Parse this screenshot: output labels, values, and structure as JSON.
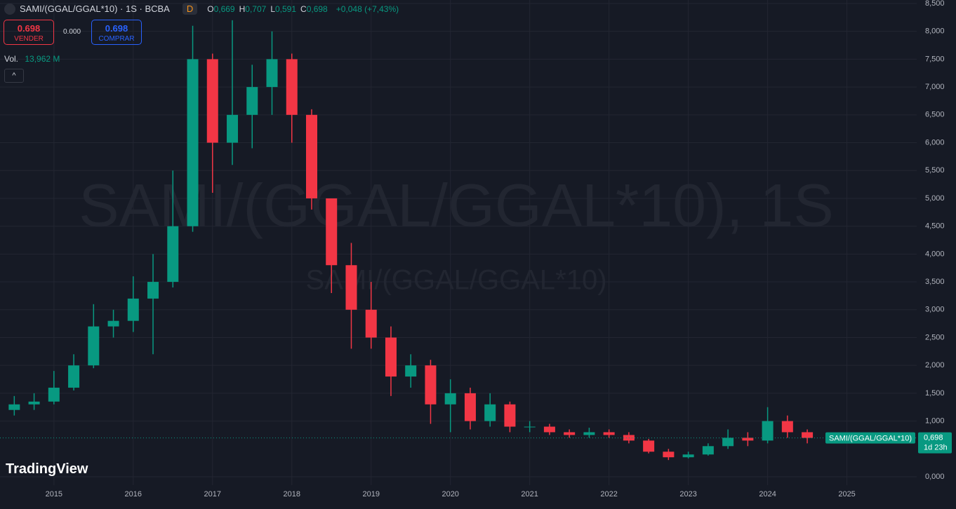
{
  "header": {
    "symbol": "SAMI/(GGAL/GGAL*10) · 1S · BCBA",
    "badge": "D",
    "ohlc": [
      {
        "key": "O",
        "val": "0,669"
      },
      {
        "key": "H",
        "val": "0,707"
      },
      {
        "key": "L",
        "val": "0,591"
      },
      {
        "key": "C",
        "val": "0,698"
      }
    ],
    "change": "+0,048 (+7,43%)",
    "sell": {
      "price": "0.698",
      "label": "VENDER"
    },
    "spread": "0.000",
    "buy": {
      "price": "0.698",
      "label": "COMPRAR"
    },
    "volume": {
      "label": "Vol.",
      "value": "13,962 M"
    }
  },
  "watermark": {
    "main": "SAMI/(GGAL/GGAL*10), 1S",
    "sub": "SAMI/(GGAL/GGAL*10)"
  },
  "price_tag": {
    "name": "SAMI/(GGAL/GGAL*10)",
    "price": "0,698",
    "countdown": "1d 23h"
  },
  "brand": "TradingView",
  "chart_data": {
    "type": "candlestick",
    "up_color": "#089981",
    "down_color": "#f23645",
    "grid": true,
    "x": [
      2014.5,
      2014.75,
      2015,
      2015.25,
      2015.5,
      2015.75,
      2016,
      2016.25,
      2016.5,
      2016.75,
      2017,
      2017.25,
      2017.5,
      2017.75,
      2018,
      2018.25,
      2018.5,
      2018.75,
      2019,
      2019.25,
      2019.5,
      2019.75,
      2020,
      2020.25,
      2020.5,
      2020.75,
      2021,
      2021.25,
      2021.5,
      2021.75,
      2022,
      2022.25,
      2022.5,
      2022.75,
      2023,
      2023.25,
      2023.5,
      2023.75,
      2024,
      2024.25,
      2024.5
    ],
    "open": [
      1.2,
      1.3,
      1.35,
      1.6,
      2.0,
      2.7,
      2.8,
      3.2,
      3.5,
      4.5,
      7.5,
      6.0,
      6.5,
      7.0,
      7.5,
      6.5,
      5.0,
      3.8,
      3.0,
      2.5,
      1.8,
      2.0,
      1.3,
      1.5,
      1.0,
      1.3,
      0.9,
      0.9,
      0.8,
      0.75,
      0.8,
      0.75,
      0.65,
      0.45,
      0.35,
      0.4,
      0.55,
      0.7,
      0.65,
      1.0,
      0.8
    ],
    "high": [
      1.45,
      1.5,
      1.9,
      2.2,
      3.1,
      3.0,
      3.6,
      4.0,
      5.5,
      8.1,
      7.6,
      8.2,
      7.4,
      8.0,
      7.6,
      6.6,
      5.0,
      4.2,
      3.5,
      2.7,
      2.2,
      2.1,
      1.75,
      1.6,
      1.5,
      1.35,
      1.0,
      0.95,
      0.85,
      0.88,
      0.85,
      0.8,
      0.68,
      0.5,
      0.45,
      0.6,
      0.85,
      0.8,
      1.25,
      1.1,
      0.85
    ],
    "low": [
      1.1,
      1.2,
      1.3,
      1.55,
      1.95,
      2.5,
      2.6,
      2.2,
      3.4,
      4.4,
      5.1,
      5.6,
      5.9,
      6.5,
      6.0,
      4.8,
      3.3,
      2.3,
      2.3,
      1.45,
      1.6,
      0.95,
      0.8,
      0.85,
      0.9,
      0.8,
      0.8,
      0.75,
      0.7,
      0.7,
      0.7,
      0.6,
      0.42,
      0.3,
      0.33,
      0.38,
      0.5,
      0.55,
      0.6,
      0.7,
      0.6
    ],
    "close": [
      1.3,
      1.35,
      1.6,
      2.0,
      2.7,
      2.8,
      3.2,
      3.5,
      4.5,
      7.5,
      6.0,
      6.5,
      7.0,
      7.5,
      6.5,
      5.0,
      3.8,
      3.0,
      2.5,
      1.8,
      2.0,
      1.3,
      1.5,
      1.0,
      1.3,
      0.9,
      0.9,
      0.8,
      0.75,
      0.8,
      0.75,
      0.65,
      0.45,
      0.35,
      0.4,
      0.55,
      0.7,
      0.65,
      1.0,
      0.8,
      0.698
    ],
    "xlim": [
      2014.32,
      2025.88
    ],
    "xticks": [
      2015,
      2016,
      2017,
      2018,
      2019,
      2020,
      2021,
      2022,
      2023,
      2024,
      2025
    ],
    "ylim": [
      0,
      8.5
    ],
    "yticks": [
      {
        "value": 0,
        "label": "0,000"
      },
      {
        "value": 1,
        "label": "1,000"
      },
      {
        "value": 1.5,
        "label": "1,500"
      },
      {
        "value": 2,
        "label": "2,000"
      },
      {
        "value": 2.5,
        "label": "2,500"
      },
      {
        "value": 3,
        "label": "3,000"
      },
      {
        "value": 3.5,
        "label": "3,500"
      },
      {
        "value": 4,
        "label": "4,000"
      },
      {
        "value": 4.5,
        "label": "4,500"
      },
      {
        "value": 5,
        "label": "5,000"
      },
      {
        "value": 5.5,
        "label": "5,500"
      },
      {
        "value": 6,
        "label": "6,000"
      },
      {
        "value": 6.5,
        "label": "6,500"
      },
      {
        "value": 7,
        "label": "7,000"
      },
      {
        "value": 7.5,
        "label": "7,500"
      },
      {
        "value": 8,
        "label": "8,000"
      },
      {
        "value": 8.5,
        "label": "8,500"
      }
    ]
  }
}
